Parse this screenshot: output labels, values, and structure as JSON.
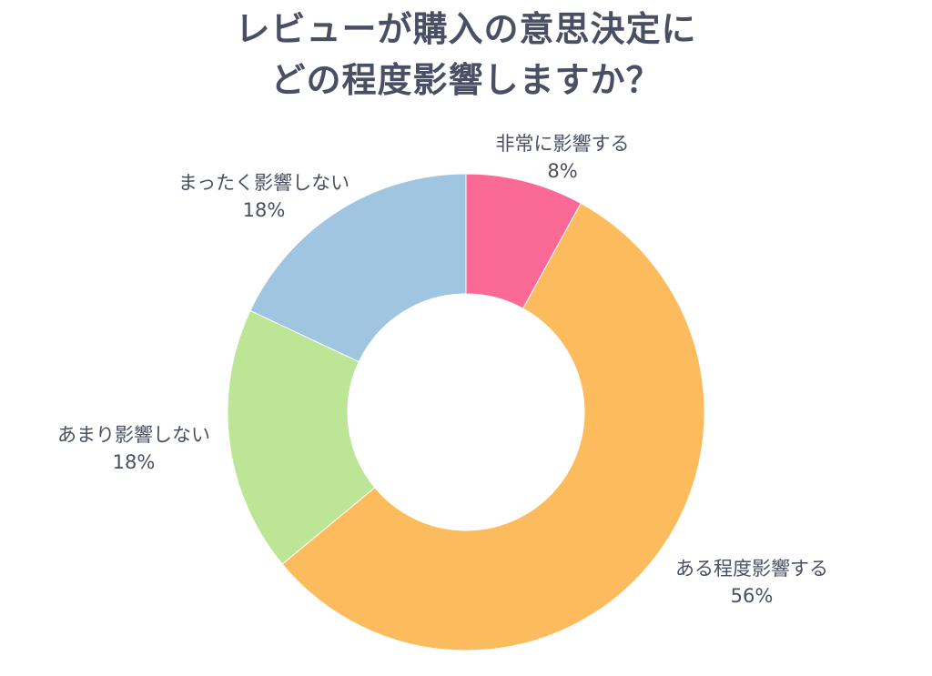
{
  "chart_data": {
    "type": "pie",
    "title_lines": [
      "レビューが購入の意思決定に",
      "どの程度影響しますか？"
    ],
    "donut": true,
    "slices": [
      {
        "label": "非常に影響する",
        "value": 8,
        "value_label": "8%",
        "color": "#fb6a96"
      },
      {
        "label": "ある程度影響する",
        "value": 56,
        "value_label": "56%",
        "color": "#fcbc5d"
      },
      {
        "label": "あまり影響しない",
        "value": 18,
        "value_label": "18%",
        "color": "#bce596"
      },
      {
        "label": "まったく影響しない",
        "value": 18,
        "value_label": "18%",
        "color": "#a0c5e1"
      }
    ]
  }
}
